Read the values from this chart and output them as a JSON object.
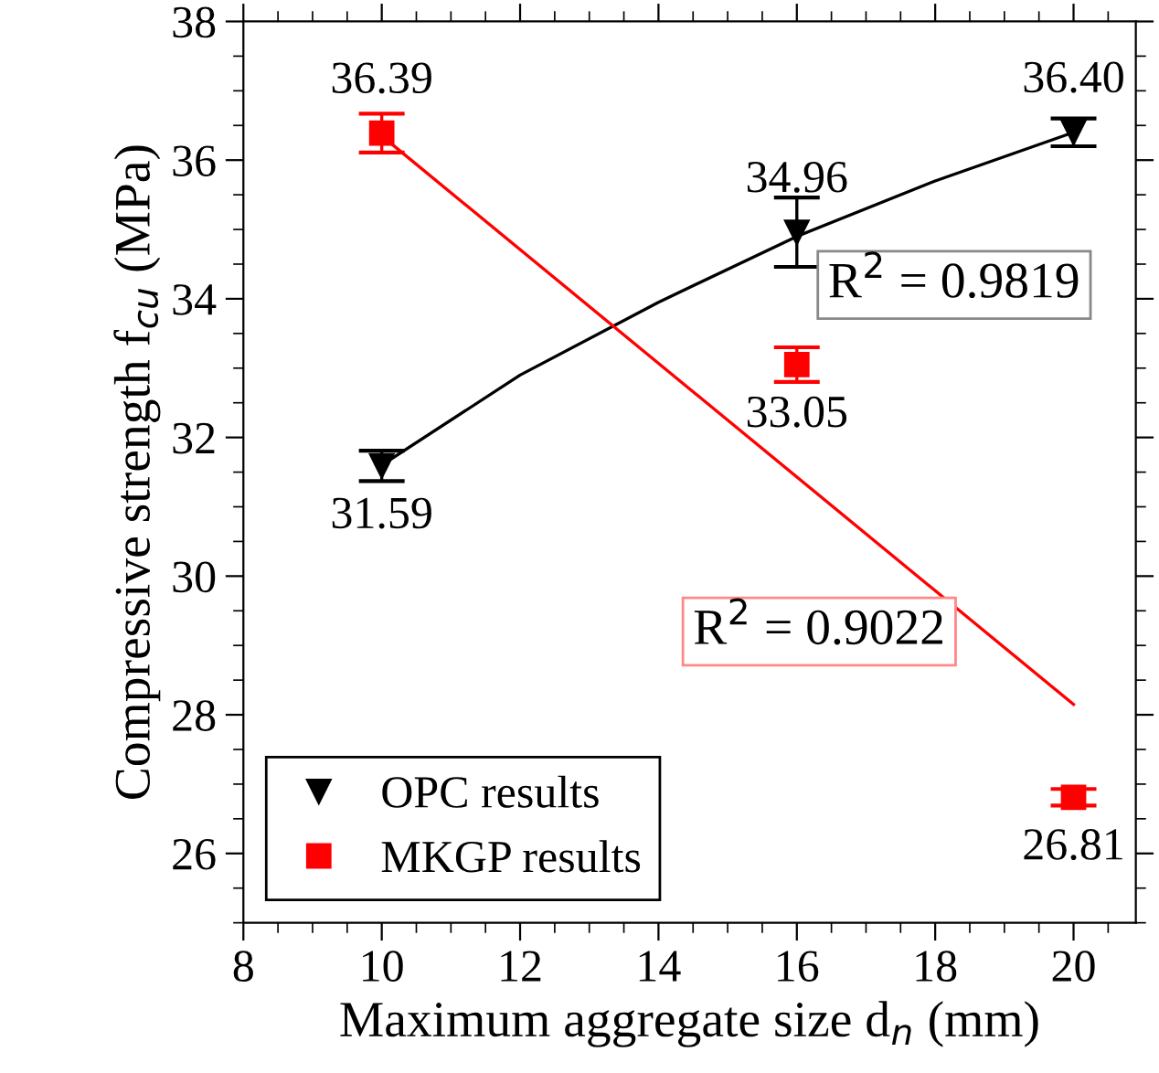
{
  "chart_data": {
    "type": "scatter",
    "xlabel": "Maximum aggregate size d$_{n}$ (mm)",
    "ylabel": "Compressive strength f$_{cu}$ (MPa)",
    "xlim": [
      8,
      20.9
    ],
    "ylim": [
      25,
      38
    ],
    "xticks": [
      8,
      10,
      12,
      14,
      16,
      18,
      20
    ],
    "yticks": [
      26,
      28,
      30,
      32,
      34,
      36,
      38
    ],
    "series": [
      {
        "name": "OPC results",
        "color": "#000000",
        "marker": "triangle",
        "x": [
          10,
          16,
          20
        ],
        "values": [
          31.59,
          34.96,
          36.4
        ],
        "errors": [
          0.22,
          0.5,
          0.2
        ],
        "value_labels": [
          "31.59",
          "34.96",
          "36.40"
        ]
      },
      {
        "name": "MKGP results",
        "color": "#ff0000",
        "marker": "square",
        "x": [
          10,
          16,
          20
        ],
        "values": [
          36.39,
          33.05,
          26.81
        ],
        "errors": [
          0.28,
          0.25,
          0.12
        ],
        "value_labels": [
          "36.39",
          "33.05",
          "26.81"
        ]
      },
      {
        "type": "line",
        "color": "#000000",
        "marker": "none",
        "x": [
          10,
          12,
          14,
          16,
          18,
          20
        ],
        "values": [
          31.6,
          32.9,
          33.95,
          34.9,
          35.7,
          36.4
        ]
      },
      {
        "type": "line",
        "color": "#ff0000",
        "marker": "none",
        "x": [
          10,
          20
        ],
        "values": [
          36.35,
          28.15
        ]
      }
    ],
    "annotations": [
      "R$^{2}$ = 0.9819",
      "R$^{2}$ = 0.9022"
    ],
    "legend": "bottom left",
    "grid": false
  }
}
